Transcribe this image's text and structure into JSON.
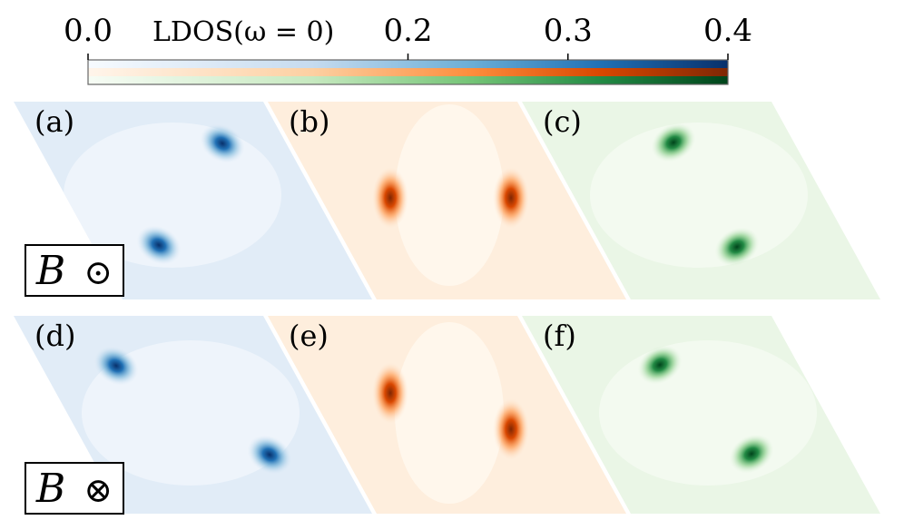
{
  "colorbar": {
    "label": "LDOS(ω = 0)",
    "ticks": [
      "0.0",
      "0.2",
      "0.3",
      "0.4"
    ],
    "tick_values": [
      0.0,
      0.2,
      0.3,
      0.4
    ],
    "range": [
      0.0,
      0.4
    ]
  },
  "colors": {
    "blue": "#08306b",
    "orange": "#7f2704",
    "green": "#00441b"
  },
  "panels": [
    {
      "label": "(a)",
      "cmap": "blue"
    },
    {
      "label": "(b)",
      "cmap": "orange"
    },
    {
      "label": "(c)",
      "cmap": "green"
    },
    {
      "label": "(d)",
      "cmap": "blue"
    },
    {
      "label": "(e)",
      "cmap": "orange"
    },
    {
      "label": "(f)",
      "cmap": "green"
    }
  ],
  "row_labels": [
    {
      "letter": "B",
      "symbol": "⊙"
    },
    {
      "letter": "B",
      "symbol": "⊗"
    }
  ]
}
